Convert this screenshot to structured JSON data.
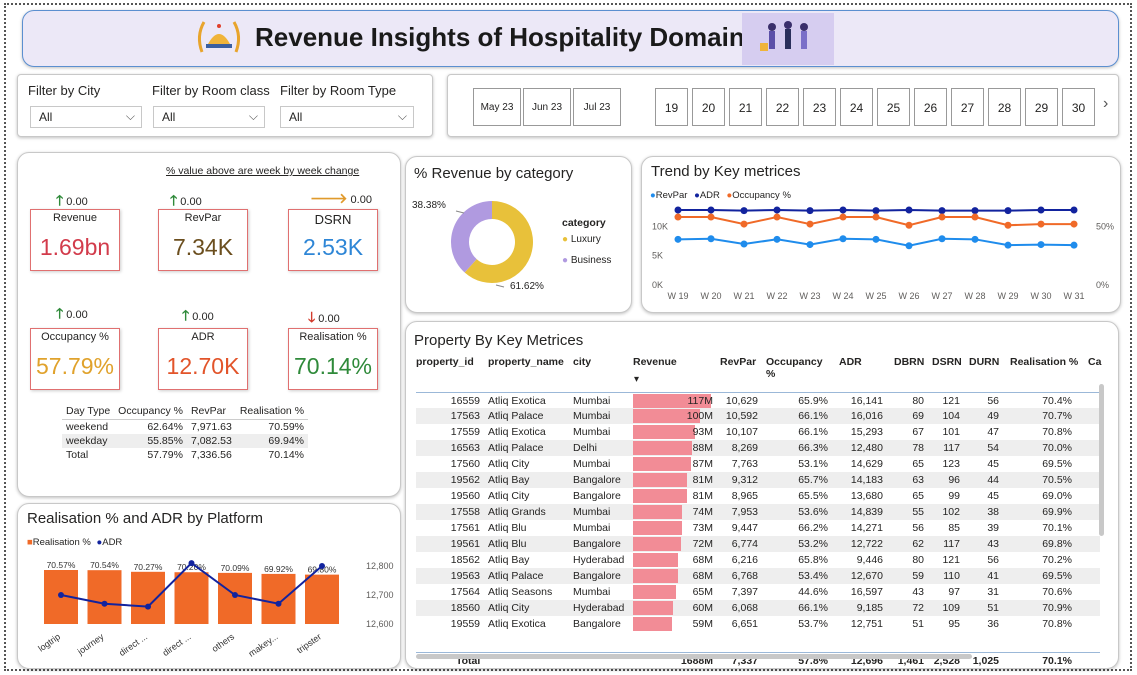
{
  "header": {
    "title": "Revenue Insights of Hospitality Domain"
  },
  "filters": {
    "city_label": "Filter by City",
    "city_value": "All",
    "room_class_label": "Filter by Room class",
    "room_class_value": "All",
    "room_type_label": "Filter by Room Type",
    "room_type_value": "All"
  },
  "slicer": {
    "months": [
      "May 23",
      "Jun 23",
      "Jul 23"
    ],
    "weeks": [
      "19",
      "20",
      "21",
      "22",
      "23",
      "24",
      "25",
      "26",
      "27",
      "28",
      "29",
      "30"
    ],
    "next_icon": "chevron-right-icon"
  },
  "kpi": {
    "note": "% value above are week by week change",
    "cards": [
      {
        "title": "Revenue",
        "value": "1.69bn",
        "change": "0.00",
        "arrow": "up",
        "color": "#d23b4b"
      },
      {
        "title": "RevPar",
        "value": "7.34K",
        "change": "0.00",
        "arrow": "up",
        "color": "#6b4e1e"
      },
      {
        "title": "DSRN",
        "value": "2.53K",
        "change": "0.00",
        "arrow": "right",
        "color": "#2e86d6"
      },
      {
        "title": "Occupancy %",
        "value": "57.79%",
        "change": "0.00",
        "arrow": "up",
        "color": "#e0a22c"
      },
      {
        "title": "ADR",
        "value": "12.70K",
        "change": "0.00",
        "arrow": "up",
        "color": "#e2542a"
      },
      {
        "title": "Realisation %",
        "value": "70.14%",
        "change": "0.00",
        "arrow": "down",
        "color": "#2f8a3a"
      }
    ],
    "table": {
      "headers": [
        "Day Type",
        "Occupancy %",
        "RevPar",
        "Realisation %"
      ],
      "rows": [
        [
          "weekend",
          "62.64%",
          "7,971.63",
          "70.59%"
        ],
        [
          "weekday",
          "55.85%",
          "7,082.53",
          "69.94%"
        ],
        [
          "Total",
          "57.79%",
          "7,336.56",
          "70.14%"
        ]
      ]
    }
  },
  "donut": {
    "title": "% Revenue by category",
    "legend_title": "category",
    "label_business": "38.38%",
    "label_luxury": "61.62%"
  },
  "trend": {
    "title": "Trend by Key metrices",
    "left_ticks": [
      "10K",
      "5K",
      "0K"
    ],
    "right_ticks": [
      "50%",
      "0%"
    ]
  },
  "platform": {
    "title": "Realisation % and ADR by Platform"
  },
  "property": {
    "title": "Property By Key Metrices",
    "headers": [
      "property_id",
      "property_name",
      "city",
      "Revenue",
      "RevPar",
      "Occupancy %",
      "ADR",
      "DBRN",
      "DSRN",
      "DURN",
      "Realisation %",
      "Ca"
    ],
    "rows": [
      [
        "16559",
        "Atliq Exotica",
        "Mumbai",
        "117M",
        "10,629",
        "65.9%",
        "16,141",
        "80",
        "121",
        "56",
        "70.4%"
      ],
      [
        "17563",
        "Atliq Palace",
        "Mumbai",
        "100M",
        "10,592",
        "66.1%",
        "16,016",
        "69",
        "104",
        "49",
        "70.7%"
      ],
      [
        "17559",
        "Atliq Exotica",
        "Mumbai",
        "93M",
        "10,107",
        "66.1%",
        "15,293",
        "67",
        "101",
        "47",
        "70.8%"
      ],
      [
        "16563",
        "Atliq Palace",
        "Delhi",
        "88M",
        "8,269",
        "66.3%",
        "12,480",
        "78",
        "117",
        "54",
        "70.0%"
      ],
      [
        "17560",
        "Atliq City",
        "Mumbai",
        "87M",
        "7,763",
        "53.1%",
        "14,629",
        "65",
        "123",
        "45",
        "69.5%"
      ],
      [
        "19562",
        "Atliq Bay",
        "Bangalore",
        "81M",
        "9,312",
        "65.7%",
        "14,183",
        "63",
        "96",
        "44",
        "70.5%"
      ],
      [
        "19560",
        "Atliq City",
        "Bangalore",
        "81M",
        "8,965",
        "65.5%",
        "13,680",
        "65",
        "99",
        "45",
        "69.0%"
      ],
      [
        "17558",
        "Atliq Grands",
        "Mumbai",
        "74M",
        "7,953",
        "53.6%",
        "14,839",
        "55",
        "102",
        "38",
        "69.9%"
      ],
      [
        "17561",
        "Atliq Blu",
        "Mumbai",
        "73M",
        "9,447",
        "66.2%",
        "14,271",
        "56",
        "85",
        "39",
        "70.1%"
      ],
      [
        "19561",
        "Atliq Blu",
        "Bangalore",
        "72M",
        "6,774",
        "53.2%",
        "12,722",
        "62",
        "117",
        "43",
        "69.8%"
      ],
      [
        "18562",
        "Atliq Bay",
        "Hyderabad",
        "68M",
        "6,216",
        "65.8%",
        "9,446",
        "80",
        "121",
        "56",
        "70.2%"
      ],
      [
        "19563",
        "Atliq Palace",
        "Bangalore",
        "68M",
        "6,768",
        "53.4%",
        "12,670",
        "59",
        "110",
        "41",
        "69.5%"
      ],
      [
        "17564",
        "Atliq Seasons",
        "Mumbai",
        "65M",
        "7,397",
        "44.6%",
        "16,597",
        "43",
        "97",
        "31",
        "70.6%"
      ],
      [
        "18560",
        "Atliq City",
        "Hyderabad",
        "60M",
        "6,068",
        "66.1%",
        "9,185",
        "72",
        "109",
        "51",
        "70.9%"
      ],
      [
        "19559",
        "Atliq Exotica",
        "Bangalore",
        "59M",
        "6,651",
        "53.7%",
        "12,751",
        "51",
        "95",
        "36",
        "70.8%"
      ]
    ],
    "revenue_values": [
      117,
      100,
      93,
      88,
      87,
      81,
      81,
      74,
      73,
      72,
      68,
      68,
      65,
      60,
      59
    ],
    "total": [
      "Total",
      "",
      "",
      "1688M",
      "7,337",
      "57.8%",
      "12,696",
      "1,461",
      "2,528",
      "1,025",
      "70.1%"
    ]
  },
  "chart_data": [
    {
      "type": "pie",
      "title": "% Revenue by category",
      "categories": [
        "Luxury",
        "Business"
      ],
      "values": [
        61.62,
        38.38
      ],
      "colors": [
        "#e8c13a",
        "#b09ae0"
      ],
      "legend": "right"
    },
    {
      "type": "line",
      "title": "Trend by Key metrices",
      "categories": [
        "W 19",
        "W 20",
        "W 21",
        "W 22",
        "W 23",
        "W 24",
        "W 25",
        "W 26",
        "W 27",
        "W 28",
        "W 29",
        "W 30",
        "W 31"
      ],
      "series": [
        {
          "name": "RevPar",
          "values": [
            7800,
            7900,
            7000,
            7800,
            6900,
            7900,
            7800,
            6700,
            7900,
            7800,
            6800,
            6900,
            6800
          ],
          "color": "#1f8cec",
          "axis": "left"
        },
        {
          "name": "ADR",
          "values": [
            12800,
            12800,
            12700,
            12800,
            12700,
            12800,
            12700,
            12800,
            12700,
            12700,
            12700,
            12800,
            12800
          ],
          "color": "#12239e",
          "axis": "left"
        },
        {
          "name": "Occupancy %",
          "values": [
            58,
            58,
            52,
            58,
            52,
            58,
            58,
            51,
            58,
            58,
            51,
            52,
            52
          ],
          "color": "#f06a28",
          "axis": "right"
        }
      ],
      "ylim_left": [
        0,
        14000
      ],
      "ylim_right": [
        0,
        70
      ],
      "legend": "top-left"
    },
    {
      "type": "bar",
      "title": "Realisation % and ADR by Platform",
      "categories": [
        "logtrip",
        "journey",
        "direct ...",
        "direct ...",
        "others",
        "makey...",
        "tripster"
      ],
      "series": [
        {
          "name": "Realisation %",
          "values": [
            70.57,
            70.54,
            70.27,
            70.2,
            70.09,
            69.92,
            69.8
          ],
          "labels": [
            "70.57%",
            "70.54%",
            "70.27%",
            "70.20%",
            "70.09%",
            "69.92%",
            "69.80%"
          ],
          "color": "#f06a28"
        },
        {
          "name": "ADR",
          "values": [
            12700,
            12670,
            12660,
            12810,
            12700,
            12670,
            12800
          ],
          "color": "#12239e",
          "axis": "right"
        }
      ],
      "right_ticks": [
        "12,800",
        "12,700",
        "12,600"
      ],
      "legend": "top-left"
    }
  ]
}
